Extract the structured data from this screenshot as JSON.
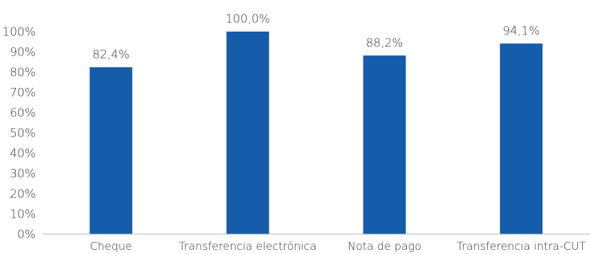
{
  "chart_data": {
    "type": "bar",
    "categories": [
      "Cheque",
      "Transferencia electrónica",
      "Nota de pago",
      "Transferencia intra-CUT"
    ],
    "values": [
      82.4,
      100.0,
      88.2,
      94.1
    ],
    "data_labels": [
      "82,4%",
      "100,0%",
      "88,2%",
      "94,1%"
    ],
    "title": "",
    "xlabel": "",
    "ylabel": "",
    "ylim": [
      0,
      100
    ],
    "yticks": [
      0,
      10,
      20,
      30,
      40,
      50,
      60,
      70,
      80,
      90,
      100
    ],
    "ytick_labels": [
      "0%",
      "10%",
      "20%",
      "30%",
      "40%",
      "50%",
      "60%",
      "70%",
      "80%",
      "90%",
      "100%"
    ],
    "grid": false,
    "legend": "none",
    "colors": {
      "bar": "#155CAA",
      "axis": "#b5b5b5",
      "text": "#333333"
    }
  }
}
